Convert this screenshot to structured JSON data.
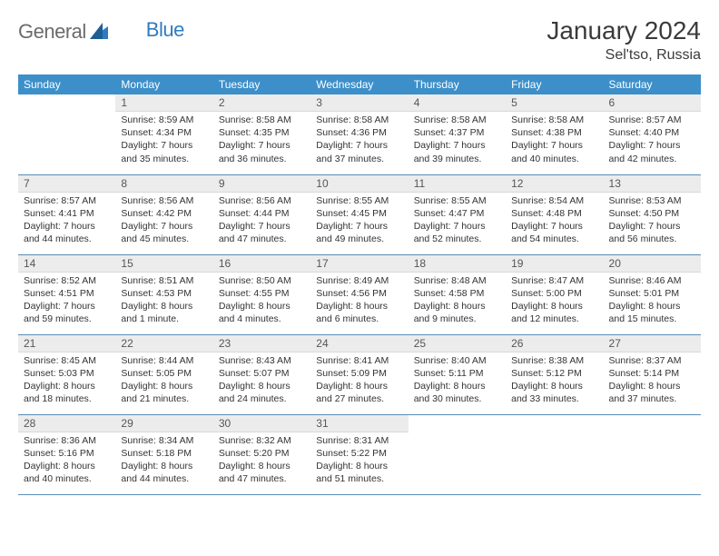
{
  "brand": {
    "name1": "General",
    "name2": "Blue"
  },
  "header": {
    "month": "January 2024",
    "location": "Sel'tso, Russia"
  },
  "colors": {
    "header_bg": "#3d8fc9",
    "header_text": "#ffffff",
    "daynum_bg": "#ececec",
    "row_divider": "#5a8db5",
    "logo_accent": "#2f7bbf",
    "logo_grey": "#6b6b6b"
  },
  "weekdays": [
    "Sunday",
    "Monday",
    "Tuesday",
    "Wednesday",
    "Thursday",
    "Friday",
    "Saturday"
  ],
  "weeks": [
    [
      {
        "n": "",
        "sr": "",
        "ss": "",
        "dl": ""
      },
      {
        "n": "1",
        "sr": "Sunrise: 8:59 AM",
        "ss": "Sunset: 4:34 PM",
        "dl": "Daylight: 7 hours and 35 minutes."
      },
      {
        "n": "2",
        "sr": "Sunrise: 8:58 AM",
        "ss": "Sunset: 4:35 PM",
        "dl": "Daylight: 7 hours and 36 minutes."
      },
      {
        "n": "3",
        "sr": "Sunrise: 8:58 AM",
        "ss": "Sunset: 4:36 PM",
        "dl": "Daylight: 7 hours and 37 minutes."
      },
      {
        "n": "4",
        "sr": "Sunrise: 8:58 AM",
        "ss": "Sunset: 4:37 PM",
        "dl": "Daylight: 7 hours and 39 minutes."
      },
      {
        "n": "5",
        "sr": "Sunrise: 8:58 AM",
        "ss": "Sunset: 4:38 PM",
        "dl": "Daylight: 7 hours and 40 minutes."
      },
      {
        "n": "6",
        "sr": "Sunrise: 8:57 AM",
        "ss": "Sunset: 4:40 PM",
        "dl": "Daylight: 7 hours and 42 minutes."
      }
    ],
    [
      {
        "n": "7",
        "sr": "Sunrise: 8:57 AM",
        "ss": "Sunset: 4:41 PM",
        "dl": "Daylight: 7 hours and 44 minutes."
      },
      {
        "n": "8",
        "sr": "Sunrise: 8:56 AM",
        "ss": "Sunset: 4:42 PM",
        "dl": "Daylight: 7 hours and 45 minutes."
      },
      {
        "n": "9",
        "sr": "Sunrise: 8:56 AM",
        "ss": "Sunset: 4:44 PM",
        "dl": "Daylight: 7 hours and 47 minutes."
      },
      {
        "n": "10",
        "sr": "Sunrise: 8:55 AM",
        "ss": "Sunset: 4:45 PM",
        "dl": "Daylight: 7 hours and 49 minutes."
      },
      {
        "n": "11",
        "sr": "Sunrise: 8:55 AM",
        "ss": "Sunset: 4:47 PM",
        "dl": "Daylight: 7 hours and 52 minutes."
      },
      {
        "n": "12",
        "sr": "Sunrise: 8:54 AM",
        "ss": "Sunset: 4:48 PM",
        "dl": "Daylight: 7 hours and 54 minutes."
      },
      {
        "n": "13",
        "sr": "Sunrise: 8:53 AM",
        "ss": "Sunset: 4:50 PM",
        "dl": "Daylight: 7 hours and 56 minutes."
      }
    ],
    [
      {
        "n": "14",
        "sr": "Sunrise: 8:52 AM",
        "ss": "Sunset: 4:51 PM",
        "dl": "Daylight: 7 hours and 59 minutes."
      },
      {
        "n": "15",
        "sr": "Sunrise: 8:51 AM",
        "ss": "Sunset: 4:53 PM",
        "dl": "Daylight: 8 hours and 1 minute."
      },
      {
        "n": "16",
        "sr": "Sunrise: 8:50 AM",
        "ss": "Sunset: 4:55 PM",
        "dl": "Daylight: 8 hours and 4 minutes."
      },
      {
        "n": "17",
        "sr": "Sunrise: 8:49 AM",
        "ss": "Sunset: 4:56 PM",
        "dl": "Daylight: 8 hours and 6 minutes."
      },
      {
        "n": "18",
        "sr": "Sunrise: 8:48 AM",
        "ss": "Sunset: 4:58 PM",
        "dl": "Daylight: 8 hours and 9 minutes."
      },
      {
        "n": "19",
        "sr": "Sunrise: 8:47 AM",
        "ss": "Sunset: 5:00 PM",
        "dl": "Daylight: 8 hours and 12 minutes."
      },
      {
        "n": "20",
        "sr": "Sunrise: 8:46 AM",
        "ss": "Sunset: 5:01 PM",
        "dl": "Daylight: 8 hours and 15 minutes."
      }
    ],
    [
      {
        "n": "21",
        "sr": "Sunrise: 8:45 AM",
        "ss": "Sunset: 5:03 PM",
        "dl": "Daylight: 8 hours and 18 minutes."
      },
      {
        "n": "22",
        "sr": "Sunrise: 8:44 AM",
        "ss": "Sunset: 5:05 PM",
        "dl": "Daylight: 8 hours and 21 minutes."
      },
      {
        "n": "23",
        "sr": "Sunrise: 8:43 AM",
        "ss": "Sunset: 5:07 PM",
        "dl": "Daylight: 8 hours and 24 minutes."
      },
      {
        "n": "24",
        "sr": "Sunrise: 8:41 AM",
        "ss": "Sunset: 5:09 PM",
        "dl": "Daylight: 8 hours and 27 minutes."
      },
      {
        "n": "25",
        "sr": "Sunrise: 8:40 AM",
        "ss": "Sunset: 5:11 PM",
        "dl": "Daylight: 8 hours and 30 minutes."
      },
      {
        "n": "26",
        "sr": "Sunrise: 8:38 AM",
        "ss": "Sunset: 5:12 PM",
        "dl": "Daylight: 8 hours and 33 minutes."
      },
      {
        "n": "27",
        "sr": "Sunrise: 8:37 AM",
        "ss": "Sunset: 5:14 PM",
        "dl": "Daylight: 8 hours and 37 minutes."
      }
    ],
    [
      {
        "n": "28",
        "sr": "Sunrise: 8:36 AM",
        "ss": "Sunset: 5:16 PM",
        "dl": "Daylight: 8 hours and 40 minutes."
      },
      {
        "n": "29",
        "sr": "Sunrise: 8:34 AM",
        "ss": "Sunset: 5:18 PM",
        "dl": "Daylight: 8 hours and 44 minutes."
      },
      {
        "n": "30",
        "sr": "Sunrise: 8:32 AM",
        "ss": "Sunset: 5:20 PM",
        "dl": "Daylight: 8 hours and 47 minutes."
      },
      {
        "n": "31",
        "sr": "Sunrise: 8:31 AM",
        "ss": "Sunset: 5:22 PM",
        "dl": "Daylight: 8 hours and 51 minutes."
      },
      {
        "n": "",
        "sr": "",
        "ss": "",
        "dl": ""
      },
      {
        "n": "",
        "sr": "",
        "ss": "",
        "dl": ""
      },
      {
        "n": "",
        "sr": "",
        "ss": "",
        "dl": ""
      }
    ]
  ]
}
